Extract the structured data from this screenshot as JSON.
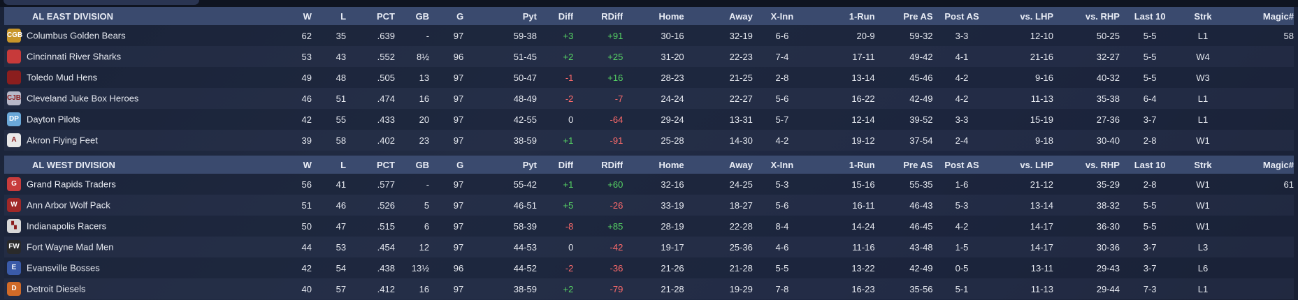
{
  "columns": [
    "W",
    "L",
    "PCT",
    "GB",
    "G",
    "Pyt",
    "Diff",
    "RDiff",
    "Home",
    "Away",
    "X-Inn",
    "1-Run",
    "Pre AS",
    "Post AS",
    "vs. LHP",
    "vs. RHP",
    "Last 10",
    "Strk",
    "Magic#"
  ],
  "divisions": [
    {
      "name": "AL EAST DIVISION",
      "teams": [
        {
          "logo": "bear-logo",
          "logo_text": "CGB",
          "logo_color": "#c8962a",
          "name": "Columbus Golden Bears",
          "W": "62",
          "L": "35",
          "PCT": ".639",
          "GB": "-",
          "G": "97",
          "Pyt": "59-38",
          "Diff": "+3",
          "RDiff": "+91",
          "Home": "30-16",
          "Away": "32-19",
          "XInn": "6-6",
          "OneRun": "20-9",
          "PreAS": "59-32",
          "PostAS": "3-3",
          "vsLHP": "12-10",
          "vsRHP": "50-25",
          "Last10": "5-5",
          "Strk": "L1",
          "Magic": "58"
        },
        {
          "logo": "shark-logo",
          "logo_text": "",
          "logo_color": "#c73a3a",
          "name": "Cincinnati River Sharks",
          "W": "53",
          "L": "43",
          "PCT": ".552",
          "GB": "8½",
          "G": "96",
          "Pyt": "51-45",
          "Diff": "+2",
          "RDiff": "+25",
          "Home": "31-20",
          "Away": "22-23",
          "XInn": "7-4",
          "OneRun": "17-11",
          "PreAS": "49-42",
          "PostAS": "4-1",
          "vsLHP": "21-16",
          "vsRHP": "32-27",
          "Last10": "5-5",
          "Strk": "W4",
          "Magic": ""
        },
        {
          "logo": "mudhen-logo",
          "logo_text": "",
          "logo_color": "#8b1e1e",
          "name": "Toledo  Mud Hens",
          "W": "49",
          "L": "48",
          "PCT": ".505",
          "GB": "13",
          "G": "97",
          "Pyt": "50-47",
          "Diff": "-1",
          "RDiff": "+16",
          "Home": "28-23",
          "Away": "21-25",
          "XInn": "2-8",
          "OneRun": "13-14",
          "PreAS": "45-46",
          "PostAS": "4-2",
          "vsLHP": "9-16",
          "vsRHP": "40-32",
          "Last10": "5-5",
          "Strk": "W3",
          "Magic": ""
        },
        {
          "logo": "jukebox-logo",
          "logo_text": "CJB",
          "logo_color": "#b8b8c8",
          "name": "Cleveland Juke Box Heroes",
          "W": "46",
          "L": "51",
          "PCT": ".474",
          "GB": "16",
          "G": "97",
          "Pyt": "48-49",
          "Diff": "-2",
          "RDiff": "-7",
          "Home": "24-24",
          "Away": "22-27",
          "XInn": "5-6",
          "OneRun": "16-22",
          "PreAS": "42-49",
          "PostAS": "4-2",
          "vsLHP": "11-13",
          "vsRHP": "35-38",
          "Last10": "6-4",
          "Strk": "L1",
          "Magic": ""
        },
        {
          "logo": "pilots-logo",
          "logo_text": "DP",
          "logo_color": "#6aa8d8",
          "name": "Dayton Pilots",
          "W": "42",
          "L": "55",
          "PCT": ".433",
          "GB": "20",
          "G": "97",
          "Pyt": "42-55",
          "Diff": "0",
          "RDiff": "-64",
          "Home": "29-24",
          "Away": "13-31",
          "XInn": "5-7",
          "OneRun": "12-14",
          "PreAS": "39-52",
          "PostAS": "3-3",
          "vsLHP": "15-19",
          "vsRHP": "27-36",
          "Last10": "3-7",
          "Strk": "L1",
          "Magic": ""
        },
        {
          "logo": "akron-logo",
          "logo_text": "A",
          "logo_color": "#e8e8e8",
          "name": "Akron  Flying Feet",
          "W": "39",
          "L": "58",
          "PCT": ".402",
          "GB": "23",
          "G": "97",
          "Pyt": "38-59",
          "Diff": "+1",
          "RDiff": "-91",
          "Home": "25-28",
          "Away": "14-30",
          "XInn": "4-2",
          "OneRun": "19-12",
          "PreAS": "37-54",
          "PostAS": "2-4",
          "vsLHP": "9-18",
          "vsRHP": "30-40",
          "Last10": "2-8",
          "Strk": "W1",
          "Magic": ""
        }
      ]
    },
    {
      "name": "AL WEST DIVISION",
      "teams": [
        {
          "logo": "traders-logo",
          "logo_text": "G",
          "logo_color": "#c83c3c",
          "name": "Grand Rapids Traders",
          "W": "56",
          "L": "41",
          "PCT": ".577",
          "GB": "-",
          "G": "97",
          "Pyt": "55-42",
          "Diff": "+1",
          "RDiff": "+60",
          "Home": "32-16",
          "Away": "24-25",
          "XInn": "5-3",
          "OneRun": "15-16",
          "PreAS": "55-35",
          "PostAS": "1-6",
          "vsLHP": "21-12",
          "vsRHP": "35-29",
          "Last10": "2-8",
          "Strk": "W1",
          "Magic": "61"
        },
        {
          "logo": "wolfpack-logo",
          "logo_text": "W",
          "logo_color": "#a02828",
          "name": "Ann Arbor Wolf Pack",
          "W": "51",
          "L": "46",
          "PCT": ".526",
          "GB": "5",
          "G": "97",
          "Pyt": "46-51",
          "Diff": "+5",
          "RDiff": "-26",
          "Home": "33-19",
          "Away": "18-27",
          "XInn": "5-6",
          "OneRun": "16-11",
          "PreAS": "46-43",
          "PostAS": "5-3",
          "vsLHP": "13-14",
          "vsRHP": "38-32",
          "Last10": "5-5",
          "Strk": "W1",
          "Magic": ""
        },
        {
          "logo": "racers-logo",
          "logo_text": "▚",
          "logo_color": "#d8d8d8",
          "name": "Indianapolis Racers",
          "W": "50",
          "L": "47",
          "PCT": ".515",
          "GB": "6",
          "G": "97",
          "Pyt": "58-39",
          "Diff": "-8",
          "RDiff": "+85",
          "Home": "28-19",
          "Away": "22-28",
          "XInn": "8-4",
          "OneRun": "14-24",
          "PreAS": "46-45",
          "PostAS": "4-2",
          "vsLHP": "14-17",
          "vsRHP": "36-30",
          "Last10": "5-5",
          "Strk": "W1",
          "Magic": ""
        },
        {
          "logo": "madmen-logo",
          "logo_text": "FW",
          "logo_color": "#2a2a2a",
          "name": "Fort Wayne Mad Men",
          "W": "44",
          "L": "53",
          "PCT": ".454",
          "GB": "12",
          "G": "97",
          "Pyt": "44-53",
          "Diff": "0",
          "RDiff": "-42",
          "Home": "19-17",
          "Away": "25-36",
          "XInn": "4-6",
          "OneRun": "11-16",
          "PreAS": "43-48",
          "PostAS": "1-5",
          "vsLHP": "14-17",
          "vsRHP": "30-36",
          "Last10": "3-7",
          "Strk": "L3",
          "Magic": ""
        },
        {
          "logo": "bosses-logo",
          "logo_text": "E",
          "logo_color": "#3a5aa8",
          "name": "Evansville Bosses",
          "W": "42",
          "L": "54",
          "PCT": ".438",
          "GB": "13½",
          "G": "96",
          "Pyt": "44-52",
          "Diff": "-2",
          "RDiff": "-36",
          "Home": "21-26",
          "Away": "21-28",
          "XInn": "5-5",
          "OneRun": "13-22",
          "PreAS": "42-49",
          "PostAS": "0-5",
          "vsLHP": "13-11",
          "vsRHP": "29-43",
          "Last10": "3-7",
          "Strk": "L6",
          "Magic": ""
        },
        {
          "logo": "diesels-logo",
          "logo_text": "D",
          "logo_color": "#d06a28",
          "name": "Detroit Diesels",
          "W": "40",
          "L": "57",
          "PCT": ".412",
          "GB": "16",
          "G": "97",
          "Pyt": "38-59",
          "Diff": "+2",
          "RDiff": "-79",
          "Home": "21-28",
          "Away": "19-29",
          "XInn": "7-8",
          "OneRun": "16-23",
          "PreAS": "35-56",
          "PostAS": "5-1",
          "vsLHP": "11-13",
          "vsRHP": "29-44",
          "Last10": "7-3",
          "Strk": "L1",
          "Magic": ""
        }
      ]
    }
  ]
}
